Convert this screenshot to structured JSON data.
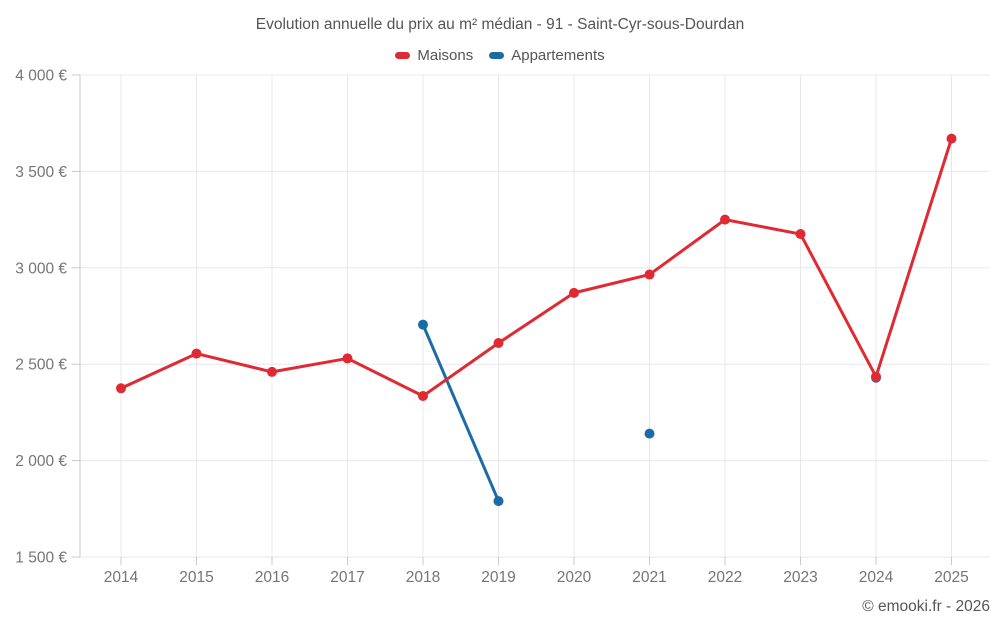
{
  "header": {
    "title": "Evolution annuelle du prix au m² médian - 91 - Saint-Cyr-sous-Dourdan"
  },
  "legend": {
    "items": [
      {
        "label": "Maisons",
        "color": "#e02a33"
      },
      {
        "label": "Appartements",
        "color": "#1b6ca6"
      }
    ]
  },
  "footer": {
    "copyright": "© emooki.fr - 2026"
  },
  "chart_data": {
    "type": "line",
    "title": "Evolution annuelle du prix au m² médian - 91 - Saint-Cyr-sous-Dourdan",
    "categories": [
      "2014",
      "2015",
      "2016",
      "2017",
      "2018",
      "2019",
      "2020",
      "2021",
      "2022",
      "2023",
      "2024",
      "2025"
    ],
    "series": [
      {
        "name": "Maisons",
        "color": "#e02a33",
        "values": [
          2375,
          2555,
          2460,
          2530,
          2335,
          2610,
          2870,
          2965,
          3250,
          3175,
          2435,
          3670
        ]
      },
      {
        "name": "Appartements",
        "color": "#1b6ca6",
        "values": [
          null,
          null,
          null,
          null,
          2705,
          1790,
          null,
          2140,
          null,
          null,
          2430,
          null
        ]
      }
    ],
    "xlabel": "",
    "ylabel": "",
    "ylim": [
      1500,
      4000
    ],
    "yticks": [
      {
        "value": 1500,
        "label": "1 500 €"
      },
      {
        "value": 2000,
        "label": "2 000 €"
      },
      {
        "value": 2500,
        "label": "2 500 €"
      },
      {
        "value": 3000,
        "label": "3 000 €"
      },
      {
        "value": 3500,
        "label": "3 500 €"
      },
      {
        "value": 4000,
        "label": "4 000 €"
      }
    ],
    "grid": true,
    "legend_position": "top",
    "currency": "€"
  }
}
